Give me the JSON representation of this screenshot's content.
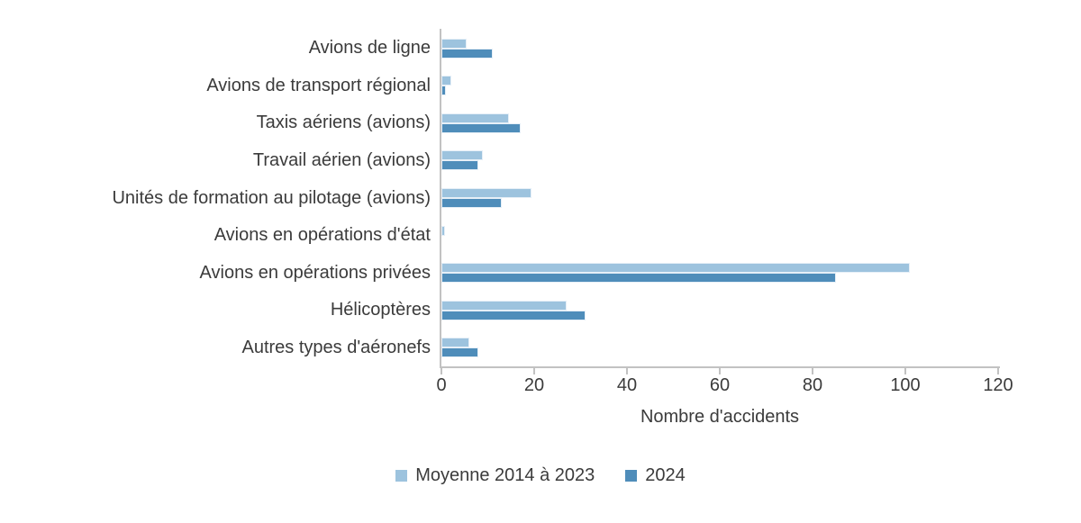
{
  "chart_data": {
    "type": "bar",
    "orientation": "horizontal",
    "title": "",
    "xlabel": "Nombre d'accidents",
    "ylabel": "",
    "xlim": [
      0,
      120
    ],
    "xticks": [
      0,
      20,
      40,
      60,
      80,
      100,
      120
    ],
    "grid": false,
    "legend_position": "bottom-center",
    "categories": [
      "Avions de ligne",
      "Avions de transport régional",
      "Taxis aériens (avions)",
      "Travail aérien (avions)",
      "Unités de formation au pilotage (avions)",
      "Avions en opérations d'état",
      "Avions en opérations privées",
      "Hélicoptères",
      "Autres types d'aéronefs"
    ],
    "series": [
      {
        "name": "Moyenne 2014 à 2023",
        "color": "#9dc3de",
        "values": [
          5.5,
          2.2,
          14.5,
          9,
          19.5,
          0.7,
          101,
          27,
          6
        ]
      },
      {
        "name": "2024",
        "color": "#4f8dba",
        "values": [
          11,
          1,
          17,
          8,
          13,
          0,
          85,
          31,
          8
        ]
      }
    ]
  },
  "colors": {
    "axis": "#c2c2c2",
    "text": "#3b3b3b",
    "background": "#ffffff"
  }
}
